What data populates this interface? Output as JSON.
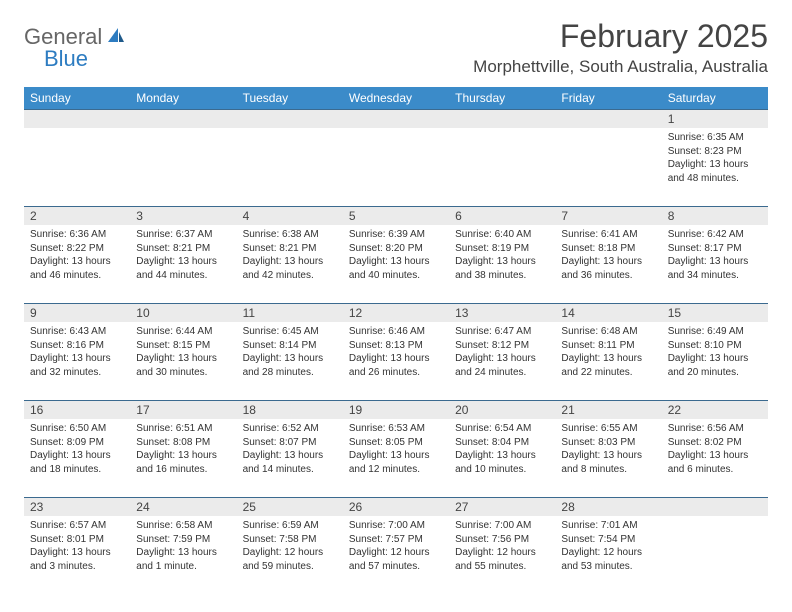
{
  "logo": {
    "general": "General",
    "blue": "Blue"
  },
  "title": "February 2025",
  "location": "Morphettville, South Australia, Australia",
  "colors": {
    "header_bg": "#3b8bc9",
    "header_text": "#ffffff",
    "daynum_bg": "#ebebeb",
    "border": "#3b6a8f",
    "logo_blue": "#2d7cc1",
    "text": "#333333"
  },
  "weekdays": [
    "Sunday",
    "Monday",
    "Tuesday",
    "Wednesday",
    "Thursday",
    "Friday",
    "Saturday"
  ],
  "weeks": [
    [
      {
        "num": "",
        "sunrise": "",
        "sunset": "",
        "daylight": ""
      },
      {
        "num": "",
        "sunrise": "",
        "sunset": "",
        "daylight": ""
      },
      {
        "num": "",
        "sunrise": "",
        "sunset": "",
        "daylight": ""
      },
      {
        "num": "",
        "sunrise": "",
        "sunset": "",
        "daylight": ""
      },
      {
        "num": "",
        "sunrise": "",
        "sunset": "",
        "daylight": ""
      },
      {
        "num": "",
        "sunrise": "",
        "sunset": "",
        "daylight": ""
      },
      {
        "num": "1",
        "sunrise": "Sunrise: 6:35 AM",
        "sunset": "Sunset: 8:23 PM",
        "daylight": "Daylight: 13 hours and 48 minutes."
      }
    ],
    [
      {
        "num": "2",
        "sunrise": "Sunrise: 6:36 AM",
        "sunset": "Sunset: 8:22 PM",
        "daylight": "Daylight: 13 hours and 46 minutes."
      },
      {
        "num": "3",
        "sunrise": "Sunrise: 6:37 AM",
        "sunset": "Sunset: 8:21 PM",
        "daylight": "Daylight: 13 hours and 44 minutes."
      },
      {
        "num": "4",
        "sunrise": "Sunrise: 6:38 AM",
        "sunset": "Sunset: 8:21 PM",
        "daylight": "Daylight: 13 hours and 42 minutes."
      },
      {
        "num": "5",
        "sunrise": "Sunrise: 6:39 AM",
        "sunset": "Sunset: 8:20 PM",
        "daylight": "Daylight: 13 hours and 40 minutes."
      },
      {
        "num": "6",
        "sunrise": "Sunrise: 6:40 AM",
        "sunset": "Sunset: 8:19 PM",
        "daylight": "Daylight: 13 hours and 38 minutes."
      },
      {
        "num": "7",
        "sunrise": "Sunrise: 6:41 AM",
        "sunset": "Sunset: 8:18 PM",
        "daylight": "Daylight: 13 hours and 36 minutes."
      },
      {
        "num": "8",
        "sunrise": "Sunrise: 6:42 AM",
        "sunset": "Sunset: 8:17 PM",
        "daylight": "Daylight: 13 hours and 34 minutes."
      }
    ],
    [
      {
        "num": "9",
        "sunrise": "Sunrise: 6:43 AM",
        "sunset": "Sunset: 8:16 PM",
        "daylight": "Daylight: 13 hours and 32 minutes."
      },
      {
        "num": "10",
        "sunrise": "Sunrise: 6:44 AM",
        "sunset": "Sunset: 8:15 PM",
        "daylight": "Daylight: 13 hours and 30 minutes."
      },
      {
        "num": "11",
        "sunrise": "Sunrise: 6:45 AM",
        "sunset": "Sunset: 8:14 PM",
        "daylight": "Daylight: 13 hours and 28 minutes."
      },
      {
        "num": "12",
        "sunrise": "Sunrise: 6:46 AM",
        "sunset": "Sunset: 8:13 PM",
        "daylight": "Daylight: 13 hours and 26 minutes."
      },
      {
        "num": "13",
        "sunrise": "Sunrise: 6:47 AM",
        "sunset": "Sunset: 8:12 PM",
        "daylight": "Daylight: 13 hours and 24 minutes."
      },
      {
        "num": "14",
        "sunrise": "Sunrise: 6:48 AM",
        "sunset": "Sunset: 8:11 PM",
        "daylight": "Daylight: 13 hours and 22 minutes."
      },
      {
        "num": "15",
        "sunrise": "Sunrise: 6:49 AM",
        "sunset": "Sunset: 8:10 PM",
        "daylight": "Daylight: 13 hours and 20 minutes."
      }
    ],
    [
      {
        "num": "16",
        "sunrise": "Sunrise: 6:50 AM",
        "sunset": "Sunset: 8:09 PM",
        "daylight": "Daylight: 13 hours and 18 minutes."
      },
      {
        "num": "17",
        "sunrise": "Sunrise: 6:51 AM",
        "sunset": "Sunset: 8:08 PM",
        "daylight": "Daylight: 13 hours and 16 minutes."
      },
      {
        "num": "18",
        "sunrise": "Sunrise: 6:52 AM",
        "sunset": "Sunset: 8:07 PM",
        "daylight": "Daylight: 13 hours and 14 minutes."
      },
      {
        "num": "19",
        "sunrise": "Sunrise: 6:53 AM",
        "sunset": "Sunset: 8:05 PM",
        "daylight": "Daylight: 13 hours and 12 minutes."
      },
      {
        "num": "20",
        "sunrise": "Sunrise: 6:54 AM",
        "sunset": "Sunset: 8:04 PM",
        "daylight": "Daylight: 13 hours and 10 minutes."
      },
      {
        "num": "21",
        "sunrise": "Sunrise: 6:55 AM",
        "sunset": "Sunset: 8:03 PM",
        "daylight": "Daylight: 13 hours and 8 minutes."
      },
      {
        "num": "22",
        "sunrise": "Sunrise: 6:56 AM",
        "sunset": "Sunset: 8:02 PM",
        "daylight": "Daylight: 13 hours and 6 minutes."
      }
    ],
    [
      {
        "num": "23",
        "sunrise": "Sunrise: 6:57 AM",
        "sunset": "Sunset: 8:01 PM",
        "daylight": "Daylight: 13 hours and 3 minutes."
      },
      {
        "num": "24",
        "sunrise": "Sunrise: 6:58 AM",
        "sunset": "Sunset: 7:59 PM",
        "daylight": "Daylight: 13 hours and 1 minute."
      },
      {
        "num": "25",
        "sunrise": "Sunrise: 6:59 AM",
        "sunset": "Sunset: 7:58 PM",
        "daylight": "Daylight: 12 hours and 59 minutes."
      },
      {
        "num": "26",
        "sunrise": "Sunrise: 7:00 AM",
        "sunset": "Sunset: 7:57 PM",
        "daylight": "Daylight: 12 hours and 57 minutes."
      },
      {
        "num": "27",
        "sunrise": "Sunrise: 7:00 AM",
        "sunset": "Sunset: 7:56 PM",
        "daylight": "Daylight: 12 hours and 55 minutes."
      },
      {
        "num": "28",
        "sunrise": "Sunrise: 7:01 AM",
        "sunset": "Sunset: 7:54 PM",
        "daylight": "Daylight: 12 hours and 53 minutes."
      },
      {
        "num": "",
        "sunrise": "",
        "sunset": "",
        "daylight": ""
      }
    ]
  ]
}
